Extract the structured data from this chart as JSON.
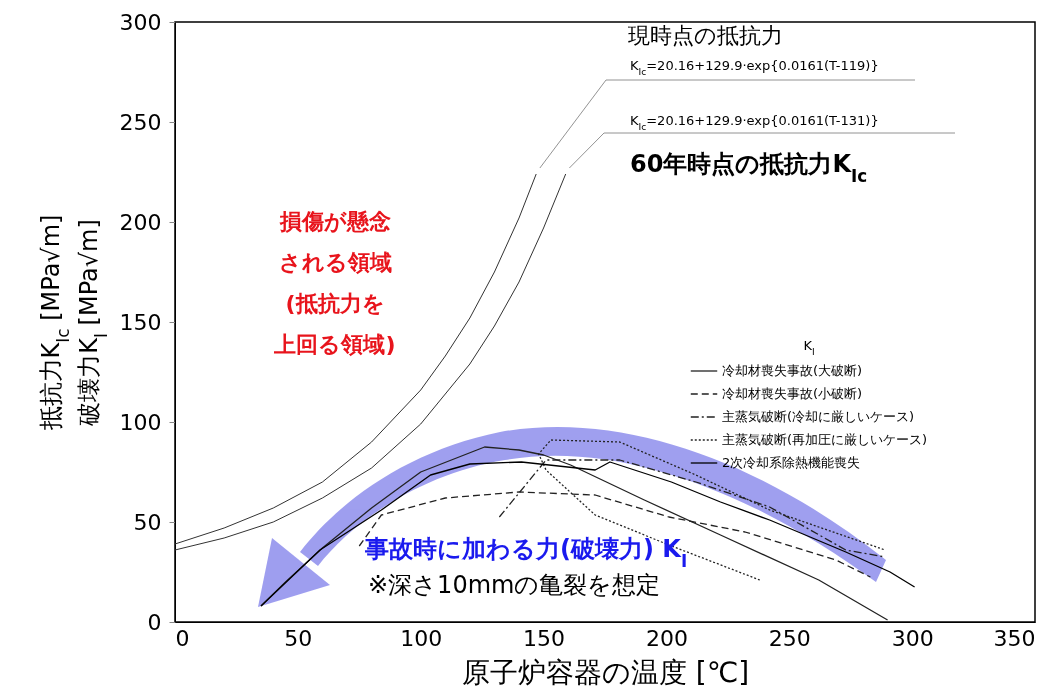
{
  "chart_data": {
    "type": "line",
    "xlabel": "原子炉容器の温度 [℃]",
    "ylabel": "抵抗力K$_{Ic}$ [MPa√m]\n破壊力K$_{I}$ [MPa√m]",
    "legend_title": "K$_{I}$",
    "legend": "right",
    "grid": false,
    "xlim": [
      0,
      350
    ],
    "xticks": [
      0,
      50,
      100,
      150,
      200,
      250,
      300,
      350
    ],
    "ylim": [
      0,
      300
    ],
    "yticks": [
      0,
      50,
      100,
      150,
      200,
      250,
      300
    ],
    "annotations": [
      "現時点の抵抗力",
      {
        "text": "K$_{Ic}$=20.16+129.9·exp{0.0161(T-119)}",
        "x": 147,
        "y": 224
      },
      {
        "text": "K$_{Ic}$=20.16+129.9·exp{0.0161(T-131)}",
        "x": 159,
        "y": 224
      },
      "60年時点の抵抗力K$_{Ic}$",
      "損傷が懸念される領域(抵抗力を上回る領域)",
      "事故時に加わる力(破壊力) K$_{I}$",
      "※深さ10mmの亀裂を想定"
    ],
    "series": [
      {
        "color": "#333333",
        "line_style": "solid",
        "x": [
          0,
          20,
          40,
          60,
          80,
          100,
          110,
          120,
          130,
          140,
          147
        ],
        "values": [
          39,
          47,
          57,
          70,
          90,
          116,
          133,
          152,
          175,
          202,
          224
        ]
      },
      {
        "color": "#333333",
        "line_style": "solid",
        "x": [
          0,
          20,
          40,
          60,
          80,
          100,
          120,
          130,
          140,
          150,
          159
        ],
        "values": [
          36,
          42,
          50,
          62,
          77,
          99,
          129,
          148,
          170,
          197,
          224
        ]
      },
      {
        "name": "冷却材喪失事故(大破断)",
        "color": "#222222",
        "line_style": "solid",
        "x": [
          35,
          45,
          60,
          80,
          100,
          126,
          140,
          150,
          161,
          191,
          222,
          262,
          290
        ],
        "values": [
          8,
          20,
          37,
          57,
          75,
          87.5,
          86,
          83.5,
          78.5,
          61,
          43.5,
          21,
          1
        ]
      },
      {
        "name": "冷却材喪失事故(小破断)",
        "color": "#222222",
        "line_style": "dashed",
        "x": [
          75,
          84,
          110,
          140,
          171,
          201,
          232,
          269,
          283
        ],
        "values": [
          38,
          53.5,
          62,
          65,
          63.5,
          52.5,
          45,
          31,
          22.5
        ]
      },
      {
        "name": "主蒸気破断(冷却に厳しいケース)",
        "color": "#222222",
        "line_style": "dashdot",
        "x": [
          132,
          151,
          181,
          212,
          242,
          273,
          289
        ],
        "values": [
          52.5,
          81,
          81,
          70,
          57.5,
          36,
          32.5
        ]
      },
      {
        "name": "主蒸気破断(再加圧に厳しいケース)",
        "color": "#222222",
        "line_style": "dotted",
        "x": [
          238,
          201,
          171,
          151,
          148,
          153,
          181,
          212,
          242,
          289
        ],
        "values": [
          21,
          38.5,
          53.5,
          76,
          84,
          91,
          90,
          73.5,
          56,
          36
        ]
      },
      {
        "name": "2次冷却系除熱機能喪失",
        "color": "#000000",
        "line_style": "solid",
        "x": [
          35,
          59,
          84,
          104,
          120,
          141,
          171,
          177,
          202,
          222,
          242,
          273,
          291,
          301
        ],
        "values": [
          8,
          36,
          56,
          73.5,
          79,
          80,
          76,
          80,
          70,
          60,
          51,
          35,
          25,
          17.5
        ]
      }
    ]
  }
}
